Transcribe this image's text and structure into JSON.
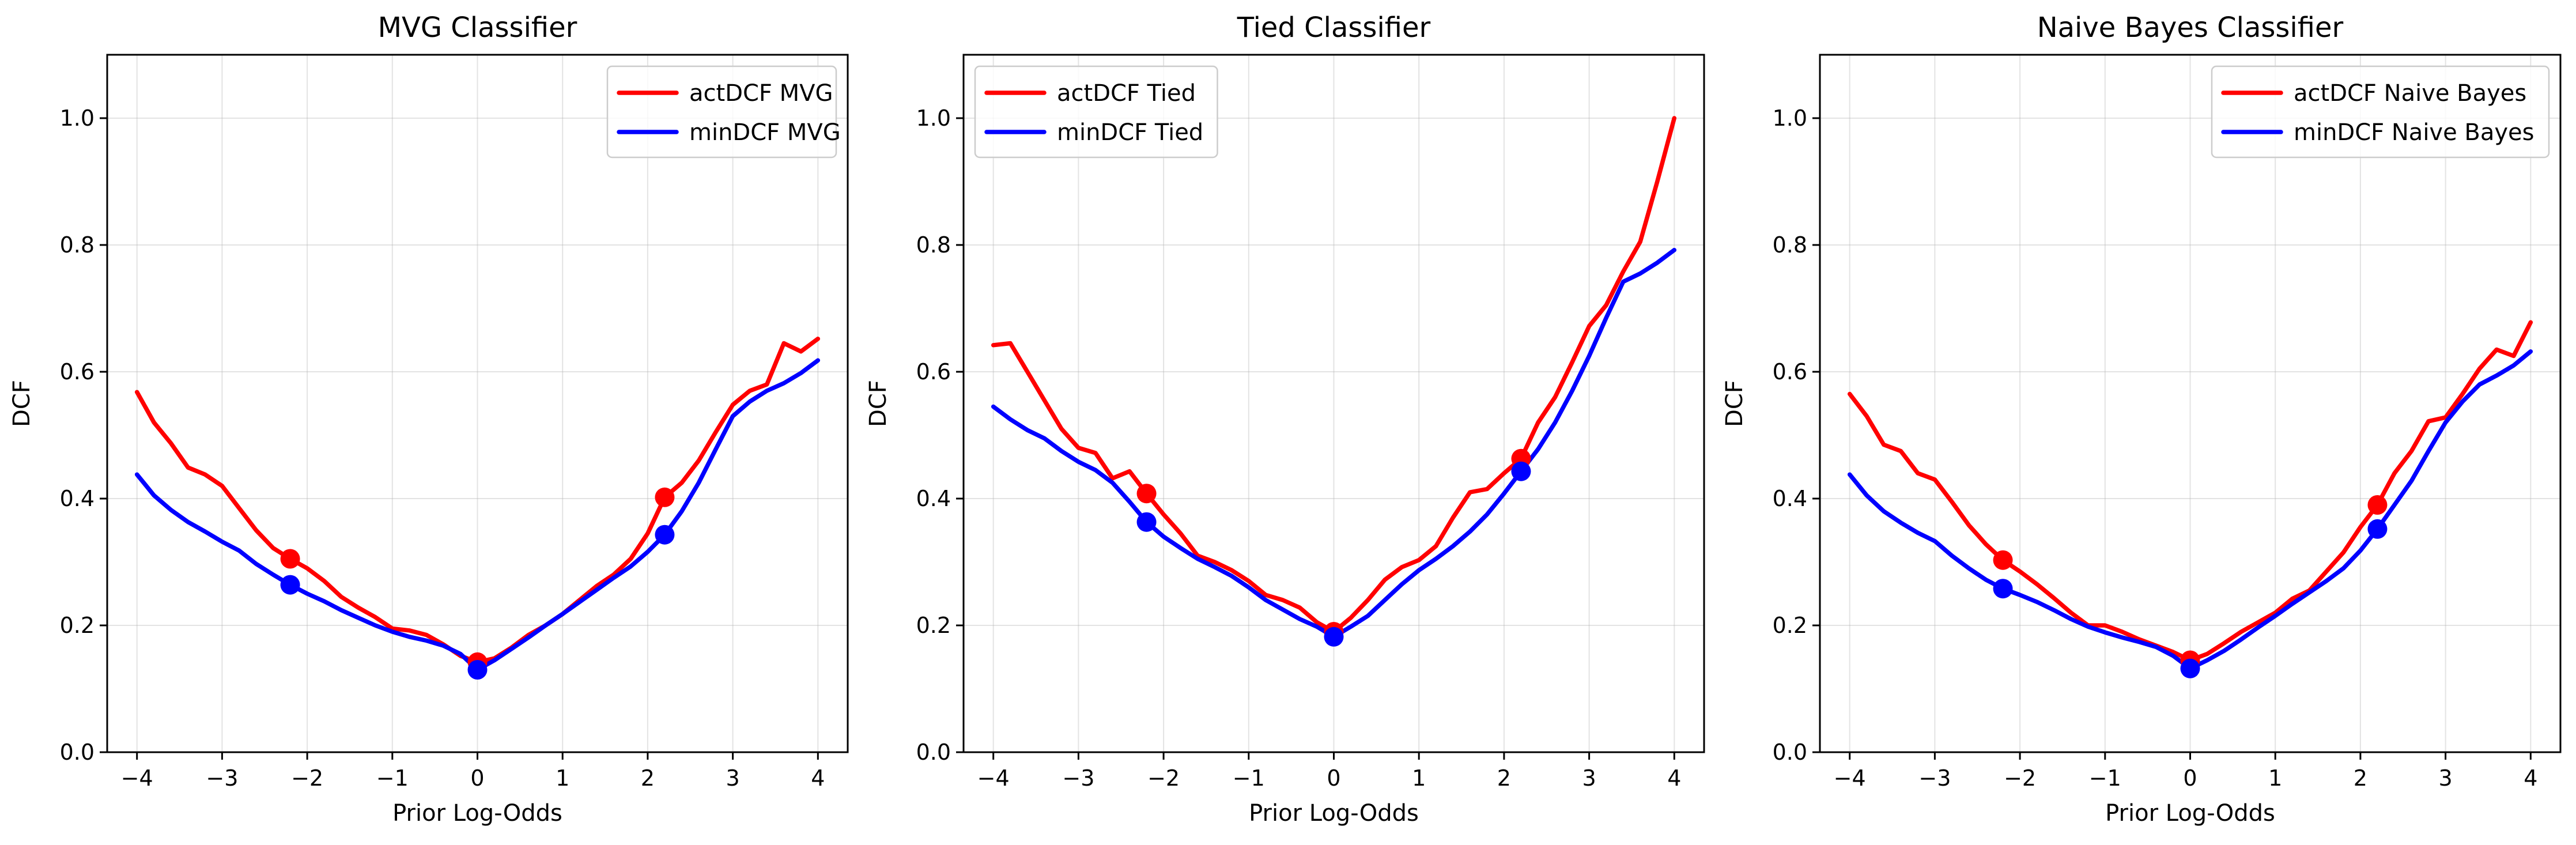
{
  "chart_data": [
    {
      "type": "line",
      "title": "MVG Classifier",
      "xlabel": "Prior Log-Odds",
      "ylabel": "DCF",
      "xlim": [
        -4.35,
        4.35
      ],
      "ylim": [
        0,
        1.1
      ],
      "xticks": [
        -4,
        -3,
        -2,
        -1,
        0,
        1,
        2,
        3,
        4
      ],
      "xtick_labels": [
        "−4",
        "−3",
        "−2",
        "−1",
        "0",
        "1",
        "2",
        "3",
        "4"
      ],
      "yticks": [
        0.0,
        0.2,
        0.4,
        0.6,
        0.8,
        1.0
      ],
      "ytick_labels": [
        "0.0",
        "0.2",
        "0.4",
        "0.6",
        "0.8",
        "1.0"
      ],
      "grid": true,
      "legend_position": "top-right",
      "series": [
        {
          "name": "actDCF MVG",
          "color": "#ff0000",
          "x": [
            -4.0,
            -3.8,
            -3.6,
            -3.4,
            -3.2,
            -3.0,
            -2.8,
            -2.6,
            -2.4,
            -2.2,
            -2.0,
            -1.8,
            -1.6,
            -1.4,
            -1.2,
            -1.0,
            -0.8,
            -0.6,
            -0.4,
            -0.2,
            0.0,
            0.2,
            0.4,
            0.6,
            0.8,
            1.0,
            1.2,
            1.4,
            1.6,
            1.8,
            2.0,
            2.2,
            2.4,
            2.6,
            2.8,
            3.0,
            3.2,
            3.4,
            3.6,
            3.8,
            4.0
          ],
          "y": [
            0.568,
            0.52,
            0.487,
            0.449,
            0.438,
            0.42,
            0.385,
            0.35,
            0.322,
            0.305,
            0.29,
            0.27,
            0.245,
            0.228,
            0.213,
            0.195,
            0.192,
            0.185,
            0.17,
            0.152,
            0.142,
            0.148,
            0.165,
            0.185,
            0.2,
            0.218,
            0.24,
            0.262,
            0.28,
            0.305,
            0.345,
            0.402,
            0.425,
            0.46,
            0.505,
            0.548,
            0.57,
            0.58,
            0.645,
            0.632,
            0.652
          ],
          "markers": [
            {
              "x": -2.2,
              "y": 0.305
            },
            {
              "x": 0.0,
              "y": 0.142
            },
            {
              "x": 2.2,
              "y": 0.402
            }
          ]
        },
        {
          "name": "minDCF MVG",
          "color": "#0000ff",
          "x": [
            -4.0,
            -3.8,
            -3.6,
            -3.4,
            -3.2,
            -3.0,
            -2.8,
            -2.6,
            -2.4,
            -2.2,
            -2.0,
            -1.8,
            -1.6,
            -1.4,
            -1.2,
            -1.0,
            -0.8,
            -0.6,
            -0.4,
            -0.2,
            0.0,
            0.2,
            0.4,
            0.6,
            0.8,
            1.0,
            1.2,
            1.4,
            1.6,
            1.8,
            2.0,
            2.2,
            2.4,
            2.6,
            2.8,
            3.0,
            3.2,
            3.4,
            3.6,
            3.8,
            4.0
          ],
          "y": [
            0.438,
            0.405,
            0.382,
            0.363,
            0.348,
            0.332,
            0.318,
            0.297,
            0.28,
            0.264,
            0.25,
            0.238,
            0.224,
            0.212,
            0.2,
            0.19,
            0.182,
            0.176,
            0.168,
            0.155,
            0.13,
            0.145,
            0.163,
            0.181,
            0.2,
            0.218,
            0.237,
            0.256,
            0.275,
            0.293,
            0.316,
            0.343,
            0.38,
            0.425,
            0.478,
            0.53,
            0.553,
            0.57,
            0.582,
            0.598,
            0.618
          ],
          "markers": [
            {
              "x": -2.2,
              "y": 0.264
            },
            {
              "x": 0.0,
              "y": 0.13
            },
            {
              "x": 2.2,
              "y": 0.343
            }
          ]
        }
      ]
    },
    {
      "type": "line",
      "title": "Tied Classifier",
      "xlabel": "Prior Log-Odds",
      "ylabel": "DCF",
      "xlim": [
        -4.35,
        4.35
      ],
      "ylim": [
        0,
        1.1
      ],
      "xticks": [
        -4,
        -3,
        -2,
        -1,
        0,
        1,
        2,
        3,
        4
      ],
      "xtick_labels": [
        "−4",
        "−3",
        "−2",
        "−1",
        "0",
        "1",
        "2",
        "3",
        "4"
      ],
      "yticks": [
        0.0,
        0.2,
        0.4,
        0.6,
        0.8,
        1.0
      ],
      "ytick_labels": [
        "0.0",
        "0.2",
        "0.4",
        "0.6",
        "0.8",
        "1.0"
      ],
      "grid": true,
      "legend_position": "top-left",
      "series": [
        {
          "name": "actDCF Tied",
          "color": "#ff0000",
          "x": [
            -4.0,
            -3.8,
            -3.6,
            -3.4,
            -3.2,
            -3.0,
            -2.8,
            -2.6,
            -2.4,
            -2.2,
            -2.0,
            -1.8,
            -1.6,
            -1.4,
            -1.2,
            -1.0,
            -0.8,
            -0.6,
            -0.4,
            -0.2,
            0.0,
            0.2,
            0.4,
            0.6,
            0.8,
            1.0,
            1.2,
            1.4,
            1.6,
            1.8,
            2.0,
            2.2,
            2.4,
            2.6,
            2.8,
            3.0,
            3.2,
            3.4,
            3.6,
            3.8,
            4.0
          ],
          "y": [
            0.642,
            0.645,
            0.6,
            0.555,
            0.51,
            0.48,
            0.472,
            0.432,
            0.443,
            0.408,
            0.375,
            0.345,
            0.31,
            0.3,
            0.287,
            0.27,
            0.248,
            0.24,
            0.228,
            0.205,
            0.19,
            0.212,
            0.24,
            0.272,
            0.292,
            0.303,
            0.325,
            0.37,
            0.41,
            0.415,
            0.44,
            0.463,
            0.52,
            0.56,
            0.615,
            0.672,
            0.705,
            0.758,
            0.805,
            0.9,
            1.0
          ],
          "markers": [
            {
              "x": -2.2,
              "y": 0.408
            },
            {
              "x": 0.0,
              "y": 0.19
            },
            {
              "x": 2.2,
              "y": 0.463
            }
          ]
        },
        {
          "name": "minDCF Tied",
          "color": "#0000ff",
          "x": [
            -4.0,
            -3.8,
            -3.6,
            -3.4,
            -3.2,
            -3.0,
            -2.8,
            -2.6,
            -2.4,
            -2.2,
            -2.0,
            -1.8,
            -1.6,
            -1.4,
            -1.2,
            -1.0,
            -0.8,
            -0.6,
            -0.4,
            -0.2,
            0.0,
            0.2,
            0.4,
            0.6,
            0.8,
            1.0,
            1.2,
            1.4,
            1.6,
            1.8,
            2.0,
            2.2,
            2.4,
            2.6,
            2.8,
            3.0,
            3.2,
            3.4,
            3.6,
            3.8,
            4.0
          ],
          "y": [
            0.545,
            0.525,
            0.508,
            0.495,
            0.475,
            0.458,
            0.445,
            0.425,
            0.395,
            0.363,
            0.34,
            0.322,
            0.305,
            0.292,
            0.278,
            0.26,
            0.24,
            0.225,
            0.21,
            0.198,
            0.182,
            0.198,
            0.215,
            0.24,
            0.265,
            0.287,
            0.305,
            0.325,
            0.348,
            0.375,
            0.408,
            0.443,
            0.478,
            0.52,
            0.57,
            0.625,
            0.685,
            0.742,
            0.755,
            0.772,
            0.792
          ],
          "markers": [
            {
              "x": -2.2,
              "y": 0.363
            },
            {
              "x": 0.0,
              "y": 0.182
            },
            {
              "x": 2.2,
              "y": 0.443
            }
          ]
        }
      ]
    },
    {
      "type": "line",
      "title": "Naive Bayes Classifier",
      "xlabel": "Prior Log-Odds",
      "ylabel": "DCF",
      "xlim": [
        -4.35,
        4.35
      ],
      "ylim": [
        0,
        1.1
      ],
      "xticks": [
        -4,
        -3,
        -2,
        -1,
        0,
        1,
        2,
        3,
        4
      ],
      "xtick_labels": [
        "−4",
        "−3",
        "−2",
        "−1",
        "0",
        "1",
        "2",
        "3",
        "4"
      ],
      "yticks": [
        0.0,
        0.2,
        0.4,
        0.6,
        0.8,
        1.0
      ],
      "ytick_labels": [
        "0.0",
        "0.2",
        "0.4",
        "0.6",
        "0.8",
        "1.0"
      ],
      "grid": true,
      "legend_position": "top-right",
      "series": [
        {
          "name": "actDCF Naive Bayes",
          "color": "#ff0000",
          "x": [
            -4.0,
            -3.8,
            -3.6,
            -3.4,
            -3.2,
            -3.0,
            -2.8,
            -2.6,
            -2.4,
            -2.2,
            -2.0,
            -1.8,
            -1.6,
            -1.4,
            -1.2,
            -1.0,
            -0.8,
            -0.6,
            -0.4,
            -0.2,
            0.0,
            0.2,
            0.4,
            0.6,
            0.8,
            1.0,
            1.2,
            1.4,
            1.6,
            1.8,
            2.0,
            2.2,
            2.4,
            2.6,
            2.8,
            3.0,
            3.2,
            3.4,
            3.6,
            3.8,
            4.0
          ],
          "y": [
            0.565,
            0.53,
            0.485,
            0.475,
            0.44,
            0.43,
            0.395,
            0.358,
            0.328,
            0.303,
            0.285,
            0.265,
            0.243,
            0.22,
            0.2,
            0.2,
            0.19,
            0.178,
            0.168,
            0.158,
            0.145,
            0.155,
            0.172,
            0.19,
            0.205,
            0.22,
            0.242,
            0.255,
            0.285,
            0.315,
            0.355,
            0.39,
            0.44,
            0.475,
            0.522,
            0.528,
            0.565,
            0.605,
            0.635,
            0.625,
            0.678
          ],
          "markers": [
            {
              "x": -2.2,
              "y": 0.303
            },
            {
              "x": 0.0,
              "y": 0.145
            },
            {
              "x": 2.2,
              "y": 0.39
            }
          ]
        },
        {
          "name": "minDCF Naive Bayes",
          "color": "#0000ff",
          "x": [
            -4.0,
            -3.8,
            -3.6,
            -3.4,
            -3.2,
            -3.0,
            -2.8,
            -2.6,
            -2.4,
            -2.2,
            -2.0,
            -1.8,
            -1.6,
            -1.4,
            -1.2,
            -1.0,
            -0.8,
            -0.6,
            -0.4,
            -0.2,
            0.0,
            0.2,
            0.4,
            0.6,
            0.8,
            1.0,
            1.2,
            1.4,
            1.6,
            1.8,
            2.0,
            2.2,
            2.4,
            2.6,
            2.8,
            3.0,
            3.2,
            3.4,
            3.6,
            3.8,
            4.0
          ],
          "y": [
            0.438,
            0.405,
            0.38,
            0.362,
            0.346,
            0.333,
            0.31,
            0.29,
            0.272,
            0.258,
            0.248,
            0.237,
            0.224,
            0.21,
            0.198,
            0.189,
            0.181,
            0.174,
            0.166,
            0.152,
            0.132,
            0.145,
            0.16,
            0.178,
            0.197,
            0.215,
            0.234,
            0.252,
            0.27,
            0.29,
            0.318,
            0.352,
            0.39,
            0.428,
            0.475,
            0.52,
            0.553,
            0.58,
            0.594,
            0.61,
            0.632
          ],
          "markers": [
            {
              "x": -2.2,
              "y": 0.258
            },
            {
              "x": 0.0,
              "y": 0.132
            },
            {
              "x": 2.2,
              "y": 0.352
            }
          ]
        }
      ]
    }
  ]
}
